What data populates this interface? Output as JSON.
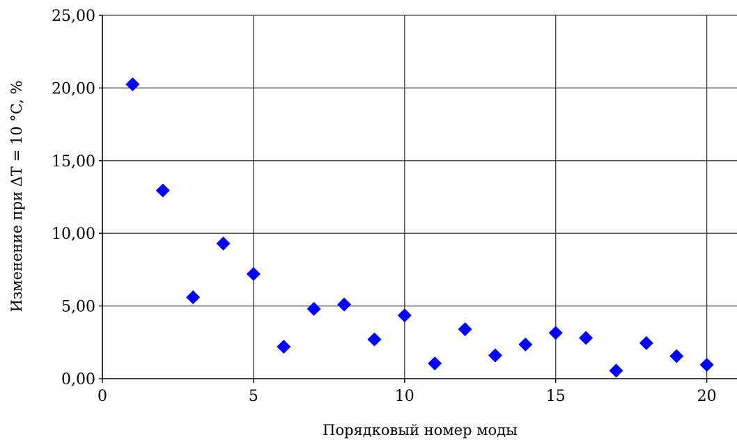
{
  "chart_data": {
    "type": "scatter",
    "title": "",
    "xlabel": "Порядковый номер моды",
    "ylabel": "Изменение при ΔT = 10 °C, %",
    "xlim": [
      0,
      21
    ],
    "ylim": [
      0,
      25
    ],
    "x_ticks": [
      0,
      5,
      10,
      15,
      20
    ],
    "x_tick_labels": [
      "0",
      "5",
      "10",
      "15",
      "20"
    ],
    "y_ticks": [
      0,
      5,
      10,
      15,
      20,
      25
    ],
    "y_tick_labels": [
      "0,00",
      "5,00",
      "10,00",
      "15,00",
      "20,00",
      "25,00"
    ],
    "grid": true,
    "marker": "diamond",
    "marker_color": "#0000ff",
    "series": [
      {
        "x": [
          1,
          2,
          3,
          4,
          5,
          6,
          7,
          8,
          9,
          10,
          11,
          12,
          13,
          14,
          15,
          16,
          17,
          18,
          19,
          20
        ],
        "y": [
          20.25,
          12.95,
          5.6,
          9.3,
          7.2,
          2.2,
          4.8,
          5.1,
          2.7,
          4.35,
          1.05,
          3.4,
          1.6,
          2.35,
          3.15,
          2.8,
          0.55,
          2.45,
          1.55,
          0.95
        ]
      }
    ]
  }
}
